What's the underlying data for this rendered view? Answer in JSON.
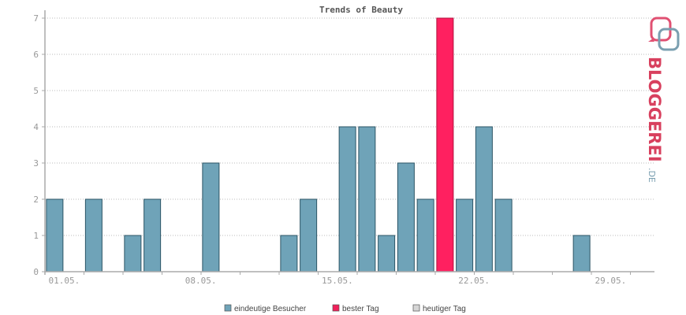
{
  "chart_data": {
    "type": "bar",
    "title": "Trends of Beauty",
    "xlabel": "",
    "ylabel": "",
    "ylim": [
      0,
      7
    ],
    "yticks": [
      "0",
      "1",
      "2",
      "3",
      "4",
      "5",
      "6",
      "7"
    ],
    "grid": true,
    "days": 31,
    "x_tick_labels": [
      {
        "day": 1,
        "label": "01.05."
      },
      {
        "day": 8,
        "label": "08.05."
      },
      {
        "day": 15,
        "label": "15.05."
      },
      {
        "day": 22,
        "label": "22.05."
      },
      {
        "day": 29,
        "label": "29.05."
      }
    ],
    "series": [
      {
        "name": "eindeutige Besucher",
        "days": [
          1,
          3,
          5,
          6,
          9,
          13,
          14,
          16,
          17,
          18,
          19,
          20,
          21,
          22,
          23,
          24,
          25,
          28
        ],
        "values": [
          2,
          2,
          1,
          2,
          3,
          1,
          2,
          4,
          4,
          1,
          3,
          2,
          7,
          2,
          4,
          2,
          0,
          1
        ]
      }
    ],
    "best_day": {
      "day": 21,
      "value": 7
    },
    "legend": [
      {
        "label": "eindeutige Besucher",
        "color": "#6fa3b8"
      },
      {
        "label": "bester Tag",
        "color": "#f0205a"
      },
      {
        "label": "heutiger Tag",
        "color": "#d6d6d6"
      }
    ],
    "legend_position": "bottom"
  },
  "colors": {
    "bar": "#6fa3b8",
    "bar_border": "#2c5566",
    "best_bar": "#ff2060",
    "best_border": "#b0103c",
    "axis": "#aaaaaa",
    "grid": "#bbbbbb"
  },
  "logo": {
    "text_main": "BLOGGEREI",
    "text_suffix": ".DE"
  }
}
